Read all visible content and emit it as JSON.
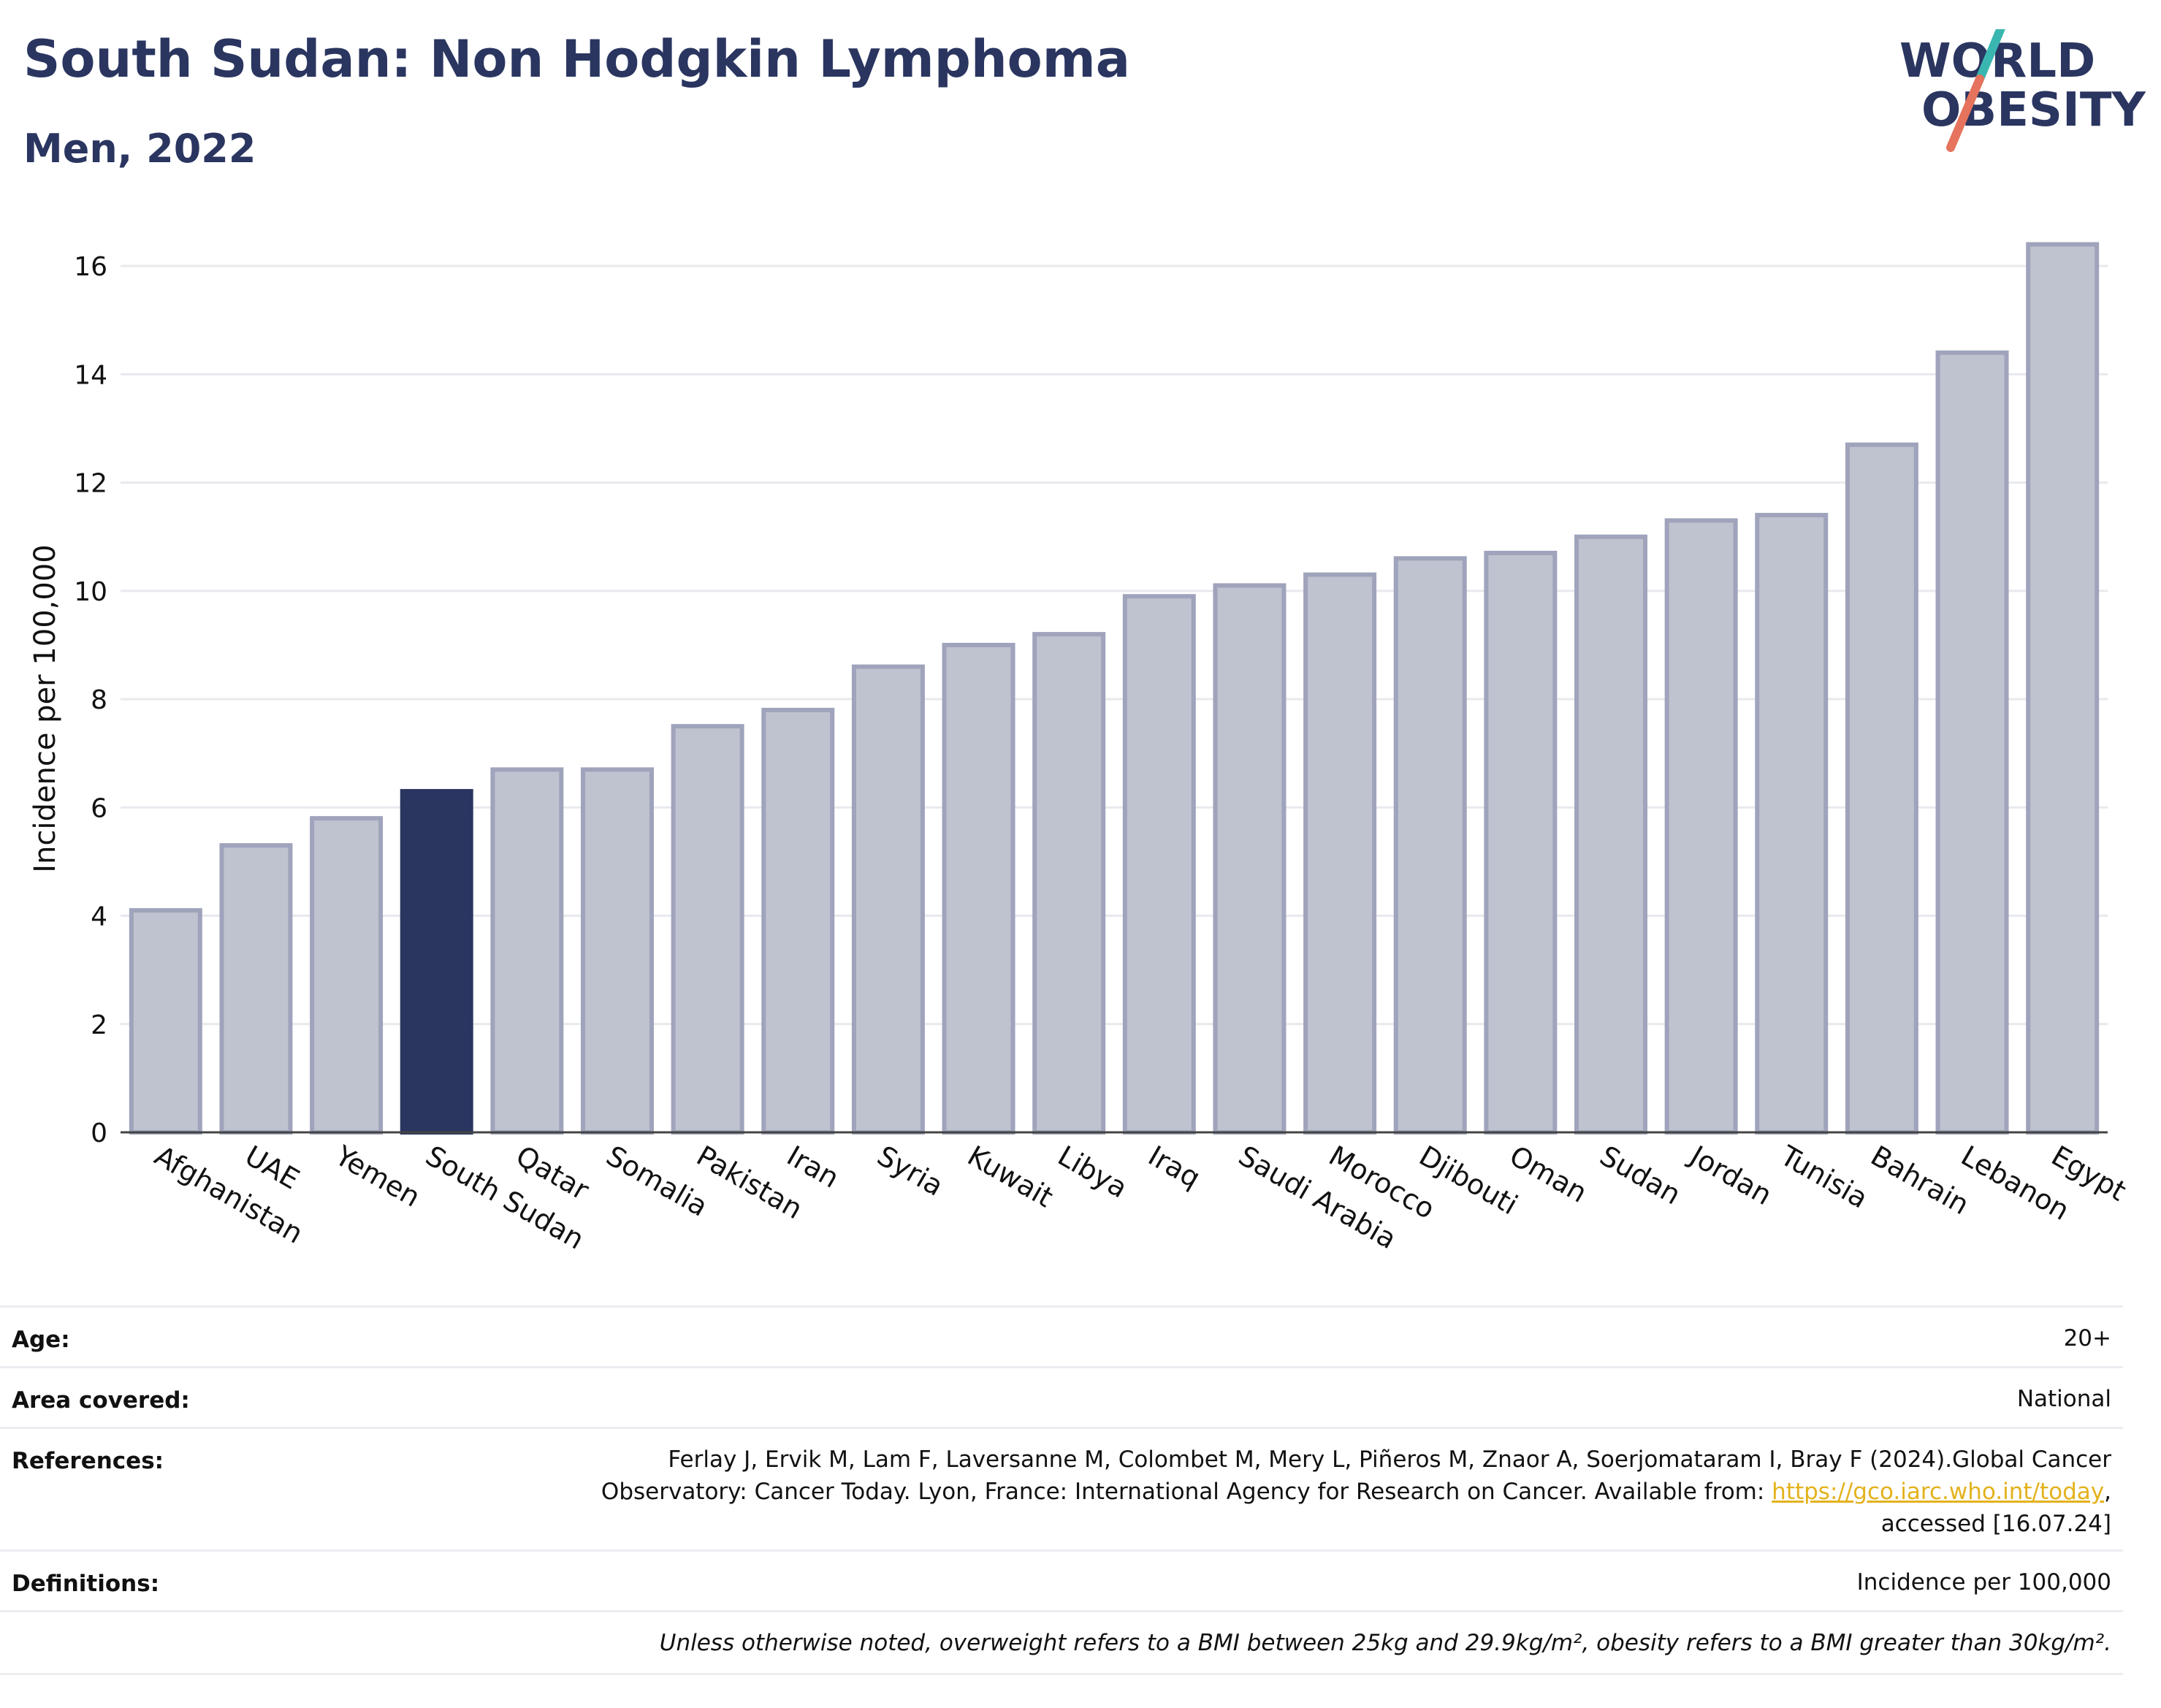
{
  "header": {
    "title": "South Sudan: Non Hodgkin Lymphoma",
    "subtitle": "Men, 2022"
  },
  "logo": {
    "line1": "WORLD",
    "line2": "OBESITY",
    "colors": {
      "text": "#2a3560",
      "slash_top": "#3ab6b0",
      "slash_bottom": "#e5735e"
    }
  },
  "chart_data": {
    "type": "bar",
    "ylabel": "Incidence per 100,000",
    "ylim": [
      0,
      17
    ],
    "yticks": [
      0,
      2,
      4,
      6,
      8,
      10,
      12,
      14,
      16
    ],
    "grid": true,
    "highlight": "South Sudan",
    "colors": {
      "bar": "#bfc2cf",
      "bar_border": "#9fa3bb",
      "highlight": "#2a3560"
    },
    "categories": [
      "Afghanistan",
      "UAE",
      "Yemen",
      "South Sudan",
      "Qatar",
      "Somalia",
      "Pakistan",
      "Iran",
      "Syria",
      "Kuwait",
      "Libya",
      "Iraq",
      "Saudi Arabia",
      "Morocco",
      "Djibouti",
      "Oman",
      "Sudan",
      "Jordan",
      "Tunisia",
      "Bahrain",
      "Lebanon",
      "Egypt"
    ],
    "values": [
      4.1,
      5.3,
      5.8,
      6.3,
      6.7,
      6.7,
      7.5,
      7.8,
      8.6,
      9.0,
      9.2,
      9.9,
      10.1,
      10.3,
      10.6,
      10.7,
      11.0,
      11.3,
      11.4,
      12.7,
      14.4,
      16.4
    ]
  },
  "meta": {
    "age_label": "Age:",
    "age_value": "20+",
    "area_label": "Area covered:",
    "area_value": "National",
    "references_label": "References:",
    "references_line1": "Ferlay J, Ervik M, Lam F, Laversanne M, Colombet M, Mery L, Piñeros M, Znaor A, Soerjomataram I, Bray F (2024).Global Cancer",
    "references_line2_pre": "Observatory: Cancer Today. Lyon, France: International Agency for Research on Cancer. Available from: ",
    "references_link": "https://gco.iarc.who.int/today",
    "references_line2_post": ",",
    "references_line3": "accessed [16.07.24]",
    "definitions_label": "Definitions:",
    "definitions_value": "Incidence per 100,000",
    "note": "Unless otherwise noted, overweight refers to a BMI between 25kg and 29.9kg/m², obesity refers to a BMI greater than 30kg/m²."
  }
}
